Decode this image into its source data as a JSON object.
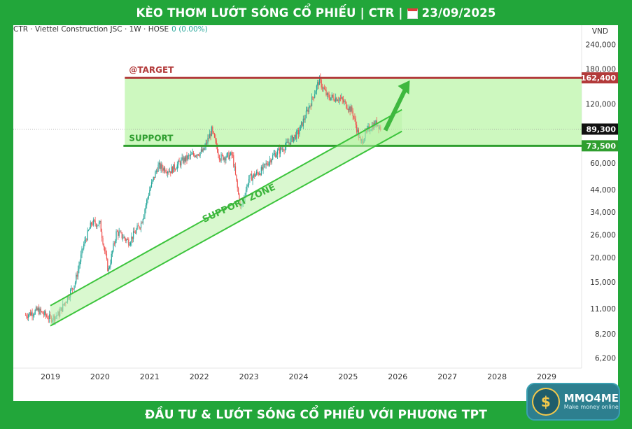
{
  "header": {
    "title_left": "KÈO THƠM LƯỚT SÓNG CỔ PHIẾU | CTR |",
    "date": "23/09/2025",
    "calendar_icon": "calendar-icon"
  },
  "ticker": {
    "name": "CTR · Viettel Construction JSC · 1W · HOSE",
    "change": "0 (0.00%)",
    "change_color": "#26a69a"
  },
  "footer": {
    "title": "ĐẦU TƯ & LƯỚT SÓNG CỔ PHIẾU VỚI PHƯƠNG TPT"
  },
  "logo": {
    "symbol": "$",
    "title": "MMO4ME",
    "subtitle": "Make money online"
  },
  "colors": {
    "banner": "#22a63a",
    "up": "#26a69a",
    "down": "#ef5350",
    "target": "#b23a3a",
    "support": "#2f9e2f",
    "zone_fill": "#c8f7b8",
    "channel": "#3cc43c"
  },
  "chart_data": {
    "type": "candlestick",
    "timeframe": "1W",
    "currency": "VND",
    "scale": "log",
    "ylim": [
      5500,
      300000
    ],
    "y_ticks": [
      6200,
      8200,
      11000,
      15000,
      20000,
      26000,
      34000,
      44000,
      60000,
      120000,
      180000,
      240000
    ],
    "x_ticks": [
      "2019",
      "2020",
      "2021",
      "2022",
      "2023",
      "2024",
      "2025",
      "2026",
      "2027",
      "2028",
      "2029"
    ],
    "price_labels": [
      {
        "label": "162,400",
        "value": 162400,
        "role": "target"
      },
      {
        "label": "89,300",
        "value": 89300,
        "role": "last"
      },
      {
        "label": "73,500",
        "value": 73500,
        "role": "support"
      }
    ],
    "annotations": {
      "target_label": "@TARGET",
      "support_label": "SUPPORT",
      "zone_label": "SUPPORT ZONE"
    },
    "target_level": 162400,
    "support_level": 73500,
    "last_price": 89300,
    "channel_lines": [
      {
        "from": [
          "2019-01",
          9000
        ],
        "to": [
          "2026-02",
          87000
        ]
      },
      {
        "from": [
          "2019-01",
          11400
        ],
        "to": [
          "2026-02",
          112000
        ]
      }
    ],
    "price_path": [
      [
        "2018-07",
        10200
      ],
      [
        "2018-10",
        10800
      ],
      [
        "2019-01",
        9800
      ],
      [
        "2019-03",
        10300
      ],
      [
        "2019-05",
        12400
      ],
      [
        "2019-07",
        15000
      ],
      [
        "2019-09",
        23000
      ],
      [
        "2019-11",
        30000
      ],
      [
        "2020-01",
        29500
      ],
      [
        "2020-03",
        17000
      ],
      [
        "2020-05",
        27000
      ],
      [
        "2020-08",
        24000
      ],
      [
        "2020-11",
        30000
      ],
      [
        "2021-01",
        44000
      ],
      [
        "2021-03",
        58000
      ],
      [
        "2021-06",
        55000
      ],
      [
        "2021-09",
        62000
      ],
      [
        "2021-12",
        67000
      ],
      [
        "2022-02",
        69000
      ],
      [
        "2022-04",
        88000
      ],
      [
        "2022-06",
        64000
      ],
      [
        "2022-09",
        66000
      ],
      [
        "2022-11",
        35000
      ],
      [
        "2023-01",
        50000
      ],
      [
        "2023-04",
        55000
      ],
      [
        "2023-07",
        66000
      ],
      [
        "2023-10",
        74000
      ],
      [
        "2024-01",
        86000
      ],
      [
        "2024-04",
        122000
      ],
      [
        "2024-06",
        158000
      ],
      [
        "2024-08",
        130000
      ],
      [
        "2024-11",
        128000
      ],
      [
        "2025-02",
        110000
      ],
      [
        "2025-04",
        76000
      ],
      [
        "2025-06",
        90000
      ],
      [
        "2025-08",
        96000
      ],
      [
        "2025-09",
        89300
      ]
    ]
  }
}
